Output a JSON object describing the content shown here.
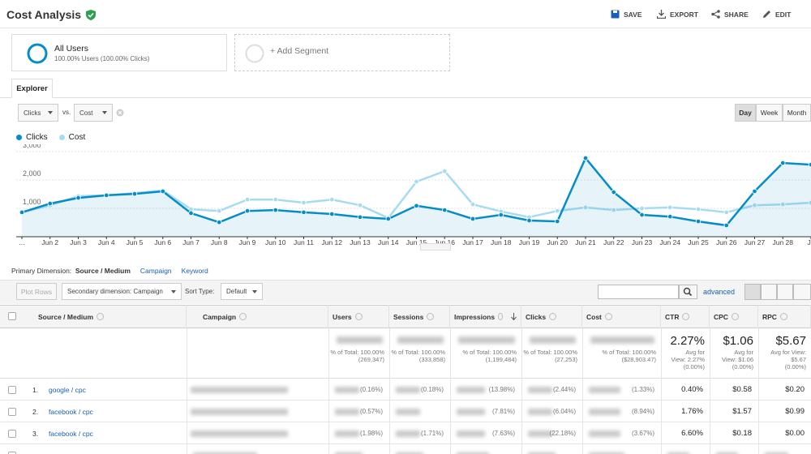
{
  "header": {
    "title": "Cost Analysis",
    "actions": [
      "SAVE",
      "EXPORT",
      "SHARE",
      "EDIT"
    ]
  },
  "segments": [
    {
      "name": "All Users",
      "detail": "100.00% Users (100.00% Clicks)"
    }
  ],
  "add_segment": "+ Add Segment",
  "tab": "Explorer",
  "metric_picker": {
    "primary": "Clicks",
    "vs": "vs.",
    "secondary": "Cost"
  },
  "granularity": [
    "Day",
    "Week",
    "Month"
  ],
  "chart_data": {
    "type": "line",
    "categories": [
      "…",
      "Jun 2",
      "Jun 3",
      "Jun 4",
      "Jun 5",
      "Jun 6",
      "Jun 7",
      "Jun 8",
      "Jun 9",
      "Jun 10",
      "Jun 11",
      "Jun 12",
      "Jun 13",
      "Jun 14",
      "Jun 15",
      "Jun 16",
      "Jun 17",
      "Jun 18",
      "Jun 19",
      "Jun 20",
      "Jun 21",
      "Jun 22",
      "Jun 23",
      "Jun 24",
      "Jun 25",
      "Jun 26",
      "Jun 27",
      "Jun 28",
      "Ju"
    ],
    "series": [
      {
        "name": "Clicks",
        "color": "#058dc7",
        "values": [
          860,
          1170,
          1370,
          1460,
          1510,
          1600,
          830,
          510,
          910,
          940,
          860,
          800,
          690,
          630,
          1090,
          940,
          630,
          770,
          570,
          540,
          2770,
          1570,
          770,
          710,
          540,
          400,
          1600,
          2600,
          2540
        ]
      },
      {
        "name": "Cost",
        "color": "#a7dcef",
        "values": [
          860,
          1110,
          1430,
          1460,
          1540,
          1630,
          970,
          910,
          1310,
          1310,
          1200,
          1310,
          1110,
          660,
          1940,
          2310,
          1140,
          890,
          690,
          910,
          1030,
          940,
          1000,
          1030,
          970,
          860,
          1110,
          1140,
          1200
        ]
      }
    ],
    "ylim": [
      0,
      3200
    ],
    "yticks": [
      {
        "value": 1000,
        "label": "1,000"
      },
      {
        "value": 2000,
        "label": "2,000"
      },
      {
        "value": 3000,
        "label": "3,000"
      }
    ],
    "grid": true
  },
  "dimensions": {
    "label": "Primary Dimension:",
    "options": [
      "Source / Medium",
      "Campaign",
      "Keyword"
    ]
  },
  "toolbar": {
    "plot_rows": "Plot Rows",
    "secondary": "Secondary dimension: Campaign",
    "sort_label": "Sort Type:",
    "sort": "Default",
    "advanced": "advanced"
  },
  "table": {
    "columns": [
      "Source / Medium",
      "Campaign",
      "Users",
      "Sessions",
      "Impressions",
      "Clicks",
      "Cost",
      "CTR",
      "CPC",
      "RPC"
    ],
    "totals": {
      "users": "% of Total: 100.00% (269,347)",
      "sessions": "% of Total: 100.00% (333,858)",
      "impressions": "% of Total: 100.00% (1,199,484)",
      "clicks": "% of Total: 100.00% (27,253)",
      "cost": "% of Total: 100.00% ($28,903.47)",
      "ctr": {
        "value": "2.27%",
        "note": "Avg for View: 2.27% (0.00%)"
      },
      "cpc": {
        "value": "$1.06",
        "note": "Avg for View: $1.06 (0.00%)"
      },
      "rpc": {
        "value": "$5.67",
        "note": "Avg for View: $5.67 (0.00%)"
      }
    },
    "rows": [
      {
        "n": "1.",
        "source": "google / cpc",
        "users": "(0.16%)",
        "sessions": "(0.18%)",
        "impressions": "(13.98%)",
        "clicks": "(2.44%)",
        "cost": "(1.33%)",
        "ctr": "0.40%",
        "cpc": "$0.58",
        "rpc": "$0.20"
      },
      {
        "n": "2.",
        "source": "facebook / cpc",
        "users": "(0.57%)",
        "impressions": "(7.81%)",
        "clicks": "(6.04%)",
        "cost": "(8.94%)",
        "ctr": "1.76%",
        "cpc": "$1.57",
        "rpc": "$0.99"
      },
      {
        "n": "3.",
        "source": "facebook / cpc",
        "users": "(1.98%)",
        "sessions": "(1.71%)",
        "impressions": "(7.63%)",
        "clicks": "(22.18%)",
        "cost": "(3.67%)",
        "ctr": "6.60%",
        "cpc": "$0.18",
        "rpc": "$0.00"
      }
    ]
  }
}
